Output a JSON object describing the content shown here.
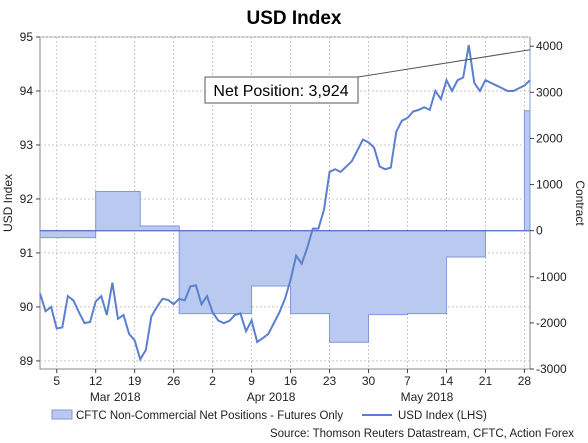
{
  "chart_data": {
    "type": "line",
    "title": "USD Index",
    "ylabel": "USD Index",
    "y2label": "Contract",
    "ylim": [
      88.85,
      95.0
    ],
    "y2lim": [
      -3000,
      4200
    ],
    "yticks": [
      "89",
      "90",
      "91",
      "92",
      "93",
      "94",
      "95"
    ],
    "y2ticks": [
      "-3000",
      "-2000",
      "-1000",
      "0",
      "1000",
      "2000",
      "3000",
      "4000"
    ],
    "xtick_labels": [
      "5",
      "12",
      "19",
      "26",
      "2",
      "9",
      "16",
      "23",
      "30",
      "7",
      "14",
      "21",
      "28"
    ],
    "month_labels": [
      "Mar 2018",
      "Apr 2018",
      "May 2018"
    ],
    "legend": {
      "position": "bottom"
    },
    "annotation": "Net Position: 3,924",
    "source": "Source: Thomson Reuters Datastream, CFTC, Action Forex",
    "series": [
      {
        "name": "CFTC Non-Commercial Net Positions - Futures Only",
        "type": "area",
        "axis": "right",
        "x": [
          0,
          4,
          10,
          18,
          25,
          31,
          38,
          45,
          52,
          59,
          66,
          73,
          80,
          87,
          88
        ],
        "values": [
          -150,
          -150,
          850,
          100,
          -1800,
          -1800,
          -1200,
          -1800,
          -2420,
          -1820,
          -1800,
          -570,
          0,
          2600,
          3924
        ]
      },
      {
        "name": "USD Index (LHS)",
        "type": "line",
        "axis": "left",
        "x": [
          0,
          1,
          2,
          3,
          4,
          5,
          6,
          7,
          8,
          9,
          10,
          11,
          12,
          13,
          14,
          15,
          16,
          17,
          18,
          19,
          20,
          21,
          22,
          23,
          24,
          25,
          26,
          27,
          28,
          29,
          30,
          31,
          32,
          33,
          34,
          35,
          36,
          37,
          38,
          39,
          40,
          41,
          42,
          43,
          44,
          45,
          46,
          47,
          48,
          49,
          50,
          51,
          52,
          53,
          54,
          55,
          56,
          57,
          58,
          59,
          60,
          61,
          62,
          63,
          64,
          65,
          66,
          67,
          68,
          69,
          70,
          71,
          72,
          73,
          74,
          75,
          76,
          77,
          78,
          79,
          80,
          81,
          82,
          83,
          84,
          85,
          86,
          87,
          88
        ],
        "values": [
          90.25,
          89.92,
          90.0,
          89.6,
          89.62,
          90.2,
          90.12,
          89.9,
          89.7,
          89.72,
          90.1,
          90.2,
          89.85,
          90.45,
          89.78,
          89.85,
          89.5,
          89.38,
          89.03,
          89.2,
          89.82,
          90.0,
          90.15,
          90.13,
          90.05,
          90.15,
          90.12,
          90.38,
          90.4,
          90.05,
          90.2,
          89.9,
          89.75,
          89.7,
          89.74,
          89.85,
          89.88,
          89.55,
          89.75,
          89.35,
          89.42,
          89.5,
          89.7,
          89.9,
          90.15,
          90.5,
          90.95,
          90.8,
          91.1,
          91.45,
          91.45,
          91.8,
          92.5,
          92.55,
          92.5,
          92.6,
          92.7,
          92.9,
          93.1,
          93.05,
          92.95,
          92.6,
          92.55,
          92.58,
          93.25,
          93.45,
          93.5,
          93.62,
          93.65,
          93.7,
          93.65,
          94.0,
          93.85,
          94.2,
          94.0,
          94.2,
          94.25,
          94.85,
          94.15,
          94.0,
          94.2,
          94.15,
          94.1,
          94.05,
          94.0,
          94.0,
          94.05,
          94.1,
          94.2
        ]
      }
    ]
  }
}
